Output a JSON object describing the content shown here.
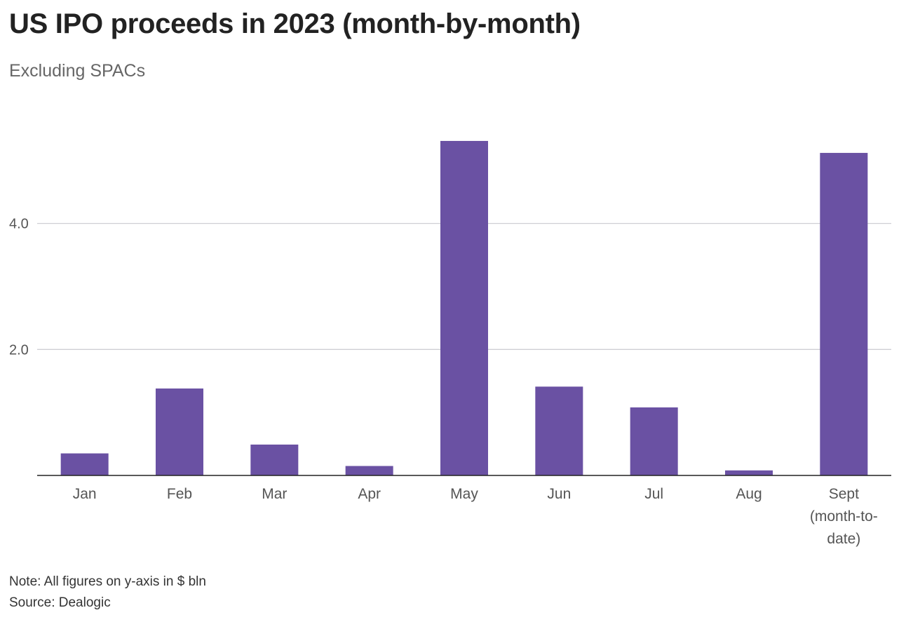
{
  "chart_data": {
    "type": "bar",
    "title": "US IPO proceeds in 2023 (month-by-month)",
    "subtitle": "Excluding SPACs",
    "categories": [
      "Jan",
      "Feb",
      "Mar",
      "Apr",
      "May",
      "Jun",
      "Jul",
      "Aug",
      "Sept (month-to-date)"
    ],
    "category_lines": [
      [
        "Jan"
      ],
      [
        "Feb"
      ],
      [
        "Mar"
      ],
      [
        "Apr"
      ],
      [
        "May"
      ],
      [
        "Jun"
      ],
      [
        "Jul"
      ],
      [
        "Aug"
      ],
      [
        "Sept",
        "(month-to-",
        "date)"
      ]
    ],
    "values": [
      0.35,
      1.38,
      0.49,
      0.15,
      5.31,
      1.41,
      1.08,
      0.08,
      5.12
    ],
    "yticks": [
      2.0,
      4.0
    ],
    "ytick_labels": [
      "2.0",
      "4.0"
    ],
    "ylim": [
      0,
      6.1
    ],
    "grid": true,
    "bar_color": "#6a51a3",
    "xlabel": "",
    "ylabel": ""
  },
  "footer": {
    "note": "Note: All figures on y-axis in $ bln",
    "source": "Source: Dealogic"
  }
}
